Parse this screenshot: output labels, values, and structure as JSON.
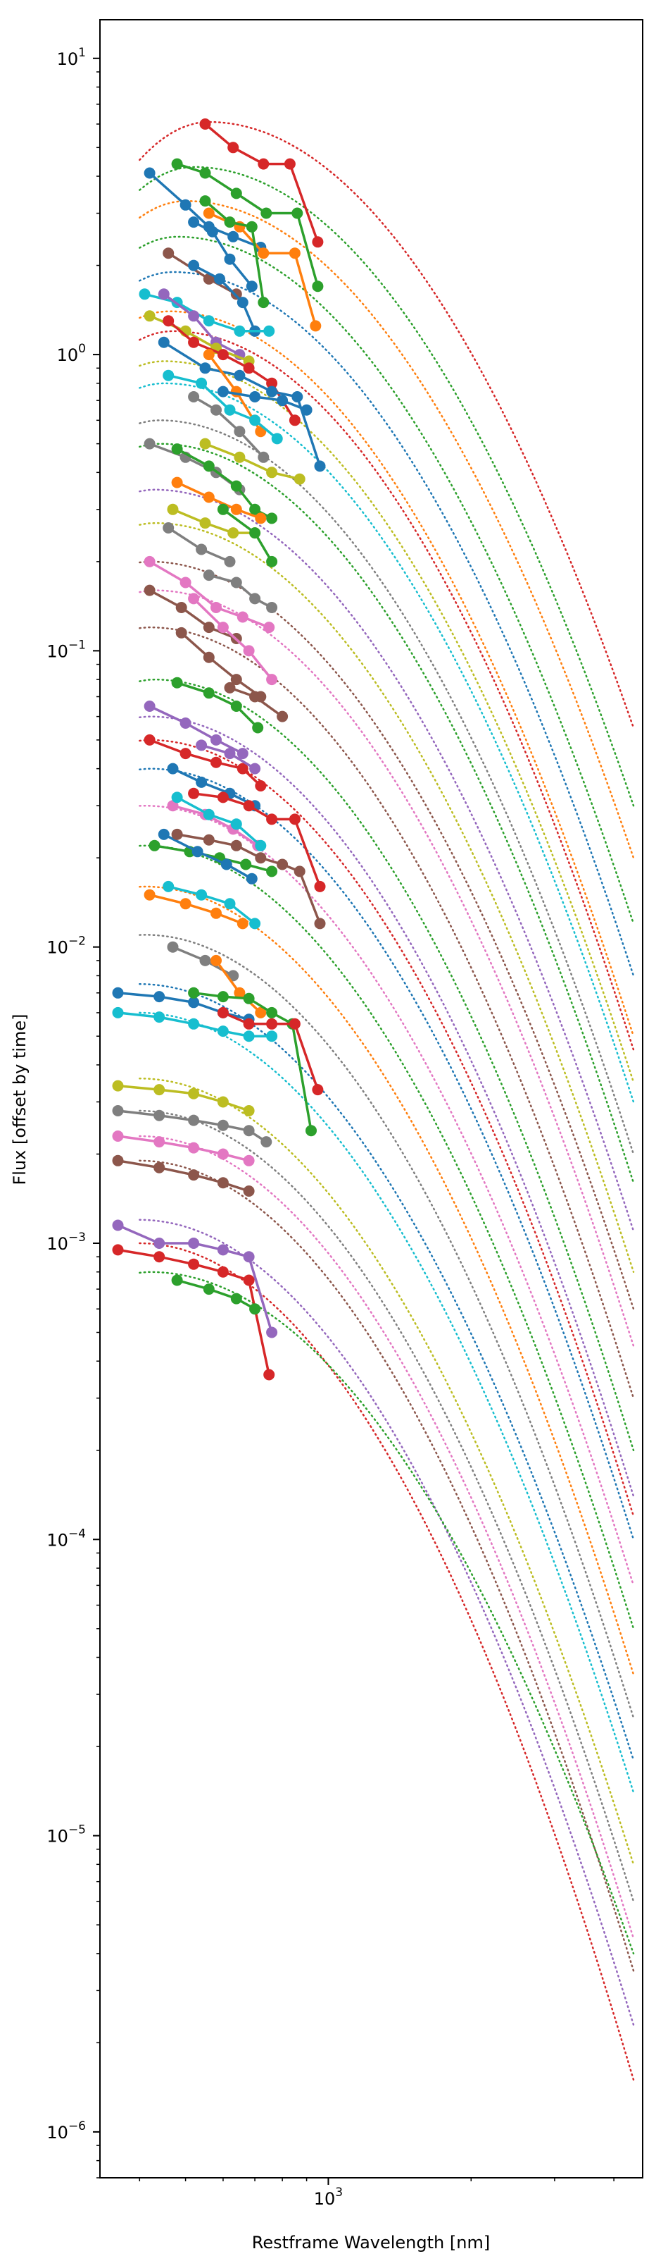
{
  "chart_data": {
    "type": "line",
    "title": "",
    "xlabel": "Restframe Wavelength [nm]",
    "ylabel": "Flux [offset by time]",
    "xscale": "log",
    "yscale": "log",
    "xlim": [
      330,
      4600
    ],
    "ylim": [
      7e-07,
      13.5
    ],
    "grid": false,
    "x_ticks": [
      {
        "value": 1000,
        "label": "10",
        "exp": "3"
      }
    ],
    "y_ticks": [
      {
        "value": 1e-06,
        "label": "10",
        "exp": "−6"
      },
      {
        "value": 1e-05,
        "label": "10",
        "exp": "−5"
      },
      {
        "value": 0.0001,
        "label": "10",
        "exp": "−4"
      },
      {
        "value": 0.001,
        "label": "10",
        "exp": "−3"
      },
      {
        "value": 0.01,
        "label": "10",
        "exp": "−2"
      },
      {
        "value": 0.1,
        "label": "10",
        "exp": "−1"
      },
      {
        "value": 1,
        "label": "10",
        "exp": "0"
      },
      {
        "value": 10,
        "label": "10",
        "exp": "1"
      }
    ],
    "palette": [
      "#1f77b4",
      "#ff7f0e",
      "#2ca02c",
      "#d62728",
      "#9467bd",
      "#8c564b",
      "#e377c2",
      "#7f7f7f",
      "#bcbd22",
      "#17becf"
    ],
    "observed_series": [
      {
        "color": "#d62728",
        "x": [
          550,
          630,
          730,
          830,
          950
        ],
        "y": [
          6.0,
          5.0,
          4.4,
          4.4,
          2.4
        ]
      },
      {
        "color": "#2ca02c",
        "x": [
          480,
          550,
          640,
          740,
          860,
          950
        ],
        "y": [
          4.4,
          4.1,
          3.5,
          3.0,
          3.0,
          1.7
        ]
      },
      {
        "color": "#1f77b4",
        "x": [
          420,
          500,
          560,
          630,
          720
        ],
        "y": [
          4.1,
          3.2,
          2.7,
          2.5,
          2.3
        ]
      },
      {
        "color": "#ff7f0e",
        "x": [
          560,
          650,
          730,
          850,
          940
        ],
        "y": [
          3.0,
          2.7,
          2.2,
          2.2,
          1.25
        ]
      },
      {
        "color": "#2ca02c",
        "x": [
          550,
          620,
          690,
          730
        ],
        "y": [
          3.3,
          2.8,
          2.7,
          1.5
        ]
      },
      {
        "color": "#1f77b4",
        "x": [
          520,
          570,
          620,
          690
        ],
        "y": [
          2.8,
          2.6,
          2.1,
          1.7
        ]
      },
      {
        "color": "#8c564b",
        "x": [
          460,
          560,
          640
        ],
        "y": [
          2.2,
          1.8,
          1.6
        ]
      },
      {
        "color": "#1f77b4",
        "x": [
          520,
          590,
          660,
          700
        ],
        "y": [
          2.0,
          1.8,
          1.5,
          1.2
        ]
      },
      {
        "color": "#17becf",
        "x": [
          410,
          480,
          560,
          650,
          750
        ],
        "y": [
          1.6,
          1.5,
          1.3,
          1.2,
          1.2
        ]
      },
      {
        "color": "#9467bd",
        "x": [
          450,
          520,
          580,
          650
        ],
        "y": [
          1.6,
          1.35,
          1.1,
          1.0
        ]
      },
      {
        "color": "#bcbd22",
        "x": [
          420,
          500,
          580,
          680
        ],
        "y": [
          1.35,
          1.2,
          1.05,
          0.95
        ]
      },
      {
        "color": "#d62728",
        "x": [
          460,
          520,
          600,
          680,
          760,
          850
        ],
        "y": [
          1.3,
          1.1,
          1.0,
          0.9,
          0.8,
          0.6
        ]
      },
      {
        "color": "#1f77b4",
        "x": [
          450,
          550,
          650,
          760,
          860,
          960
        ],
        "y": [
          1.1,
          0.9,
          0.85,
          0.75,
          0.72,
          0.42
        ]
      },
      {
        "color": "#ff7f0e",
        "x": [
          560,
          640,
          720
        ],
        "y": [
          1.0,
          0.75,
          0.55
        ]
      },
      {
        "color": "#17becf",
        "x": [
          460,
          540,
          620,
          700,
          780
        ],
        "y": [
          0.85,
          0.8,
          0.65,
          0.6,
          0.52
        ]
      },
      {
        "color": "#7f7f7f",
        "x": [
          520,
          580,
          650,
          730
        ],
        "y": [
          0.72,
          0.65,
          0.55,
          0.45
        ]
      },
      {
        "color": "#1f77b4",
        "x": [
          600,
          700,
          800,
          900
        ],
        "y": [
          0.75,
          0.72,
          0.7,
          0.65
        ]
      },
      {
        "color": "#bcbd22",
        "x": [
          550,
          650,
          760,
          870
        ],
        "y": [
          0.5,
          0.45,
          0.4,
          0.38
        ]
      },
      {
        "color": "#7f7f7f",
        "x": [
          420,
          500,
          580,
          650
        ],
        "y": [
          0.5,
          0.45,
          0.4,
          0.35
        ]
      },
      {
        "color": "#2ca02c",
        "x": [
          480,
          560,
          640,
          700,
          760
        ],
        "y": [
          0.48,
          0.42,
          0.36,
          0.3,
          0.28
        ]
      },
      {
        "color": "#ff7f0e",
        "x": [
          480,
          560,
          640,
          720
        ],
        "y": [
          0.37,
          0.33,
          0.3,
          0.28
        ]
      },
      {
        "color": "#bcbd22",
        "x": [
          470,
          550,
          630,
          700
        ],
        "y": [
          0.3,
          0.27,
          0.25,
          0.25
        ]
      },
      {
        "color": "#7f7f7f",
        "x": [
          460,
          540,
          620
        ],
        "y": [
          0.26,
          0.22,
          0.2
        ]
      },
      {
        "color": "#2ca02c",
        "x": [
          600,
          700,
          760
        ],
        "y": [
          0.3,
          0.25,
          0.2
        ]
      },
      {
        "color": "#7f7f7f",
        "x": [
          560,
          640,
          700,
          760
        ],
        "y": [
          0.18,
          0.17,
          0.15,
          0.14
        ]
      },
      {
        "color": "#e377c2",
        "x": [
          420,
          500,
          580,
          660,
          750
        ],
        "y": [
          0.2,
          0.17,
          0.14,
          0.13,
          0.12
        ]
      },
      {
        "color": "#8c564b",
        "x": [
          420,
          490,
          560,
          640
        ],
        "y": [
          0.16,
          0.14,
          0.12,
          0.11
        ]
      },
      {
        "color": "#e377c2",
        "x": [
          520,
          600,
          680,
          760
        ],
        "y": [
          0.15,
          0.12,
          0.1,
          0.08
        ]
      },
      {
        "color": "#8c564b",
        "x": [
          490,
          560,
          640,
          720
        ],
        "y": [
          0.115,
          0.095,
          0.08,
          0.07
        ]
      },
      {
        "color": "#2ca02c",
        "x": [
          480,
          560,
          640,
          710
        ],
        "y": [
          0.078,
          0.072,
          0.065,
          0.055
        ]
      },
      {
        "color": "#8c564b",
        "x": [
          620,
          700,
          800
        ],
        "y": [
          0.075,
          0.07,
          0.06
        ]
      },
      {
        "color": "#9467bd",
        "x": [
          420,
          500,
          580,
          660
        ],
        "y": [
          0.065,
          0.057,
          0.05,
          0.045
        ]
      },
      {
        "color": "#d62728",
        "x": [
          420,
          500,
          580,
          660,
          720
        ],
        "y": [
          0.05,
          0.045,
          0.042,
          0.04,
          0.035
        ]
      },
      {
        "color": "#9467bd",
        "x": [
          540,
          620,
          700
        ],
        "y": [
          0.048,
          0.045,
          0.04
        ]
      },
      {
        "color": "#1f77b4",
        "x": [
          470,
          540,
          620,
          700
        ],
        "y": [
          0.04,
          0.036,
          0.033,
          0.03
        ]
      },
      {
        "color": "#d62728",
        "x": [
          520,
          600,
          680,
          760,
          850,
          960
        ],
        "y": [
          0.033,
          0.032,
          0.03,
          0.027,
          0.027,
          0.016
        ]
      },
      {
        "color": "#e377c2",
        "x": [
          470,
          550,
          630,
          710
        ],
        "y": [
          0.03,
          0.028,
          0.025,
          0.022
        ]
      },
      {
        "color": "#17becf",
        "x": [
          480,
          560,
          640,
          720
        ],
        "y": [
          0.032,
          0.028,
          0.026,
          0.022
        ]
      },
      {
        "color": "#2ca02c",
        "x": [
          430,
          510,
          590,
          670,
          760
        ],
        "y": [
          0.022,
          0.021,
          0.02,
          0.019,
          0.018
        ]
      },
      {
        "color": "#1f77b4",
        "x": [
          450,
          530,
          610,
          690
        ],
        "y": [
          0.024,
          0.021,
          0.019,
          0.017
        ]
      },
      {
        "color": "#8c564b",
        "x": [
          480,
          560,
          640,
          720,
          800,
          870,
          960
        ],
        "y": [
          0.024,
          0.023,
          0.022,
          0.02,
          0.019,
          0.018,
          0.012
        ]
      },
      {
        "color": "#ff7f0e",
        "x": [
          420,
          500,
          580,
          660
        ],
        "y": [
          0.015,
          0.014,
          0.013,
          0.012
        ]
      },
      {
        "color": "#17becf",
        "x": [
          460,
          540,
          620,
          700
        ],
        "y": [
          0.016,
          0.015,
          0.014,
          0.012
        ]
      },
      {
        "color": "#7f7f7f",
        "x": [
          470,
          550,
          630
        ],
        "y": [
          0.01,
          0.009,
          0.008
        ]
      },
      {
        "color": "#ff7f0e",
        "x": [
          580,
          650,
          720
        ],
        "y": [
          0.009,
          0.007,
          0.006
        ]
      },
      {
        "color": "#1f77b4",
        "x": [
          360,
          440,
          520,
          600,
          680
        ],
        "y": [
          0.007,
          0.0068,
          0.0065,
          0.006,
          0.0057
        ]
      },
      {
        "color": "#2ca02c",
        "x": [
          520,
          600,
          680,
          760,
          840,
          920
        ],
        "y": [
          0.007,
          0.0068,
          0.0067,
          0.006,
          0.0055,
          0.0024
        ]
      },
      {
        "color": "#17becf",
        "x": [
          360,
          440,
          520,
          600,
          680,
          760
        ],
        "y": [
          0.006,
          0.0058,
          0.0055,
          0.0052,
          0.005,
          0.005
        ]
      },
      {
        "color": "#d62728",
        "x": [
          600,
          680,
          760,
          850,
          950
        ],
        "y": [
          0.006,
          0.0055,
          0.0055,
          0.0055,
          0.0033
        ]
      },
      {
        "color": "#bcbd22",
        "x": [
          360,
          440,
          520,
          600,
          680
        ],
        "y": [
          0.0034,
          0.0033,
          0.0032,
          0.003,
          0.0028
        ]
      },
      {
        "color": "#7f7f7f",
        "x": [
          360,
          440,
          520,
          600,
          680,
          740
        ],
        "y": [
          0.0028,
          0.0027,
          0.0026,
          0.0025,
          0.0024,
          0.0022
        ]
      },
      {
        "color": "#e377c2",
        "x": [
          360,
          440,
          520,
          600,
          680
        ],
        "y": [
          0.0023,
          0.0022,
          0.0021,
          0.002,
          0.0019
        ]
      },
      {
        "color": "#8c564b",
        "x": [
          360,
          440,
          520,
          600,
          680
        ],
        "y": [
          0.0019,
          0.0018,
          0.0017,
          0.0016,
          0.0015
        ]
      },
      {
        "color": "#9467bd",
        "x": [
          360,
          440,
          520,
          600,
          680,
          760
        ],
        "y": [
          0.00115,
          0.001,
          0.001,
          0.00095,
          0.0009,
          0.0005
        ]
      },
      {
        "color": "#d62728",
        "x": [
          360,
          440,
          520,
          600,
          680,
          750
        ],
        "y": [
          0.00095,
          0.0009,
          0.00085,
          0.0008,
          0.00075,
          0.00036
        ]
      },
      {
        "color": "#2ca02c",
        "x": [
          480,
          560,
          640,
          700
        ],
        "y": [
          0.00075,
          0.0007,
          0.00065,
          0.0006
        ]
      }
    ],
    "model_curve_note_excluded": true,
    "model_curves": [
      {
        "color": "#d62728",
        "peak_x": 560,
        "peak_y": 6.1,
        "end_y": 0.055
      },
      {
        "color": "#2ca02c",
        "peak_x": 520,
        "peak_y": 4.3,
        "end_y": 0.03
      },
      {
        "color": "#ff7f0e",
        "peak_x": 500,
        "peak_y": 3.3,
        "end_y": 0.02
      },
      {
        "color": "#2ca02c",
        "peak_x": 480,
        "peak_y": 2.5,
        "end_y": 0.012
      },
      {
        "color": "#1f77b4",
        "peak_x": 470,
        "peak_y": 1.9,
        "end_y": 0.008
      },
      {
        "color": "#ff7f0e",
        "peak_x": 460,
        "peak_y": 1.4,
        "end_y": 0.005
      },
      {
        "color": "#d62728",
        "peak_x": 470,
        "peak_y": 1.2,
        "end_y": 0.0045
      },
      {
        "color": "#bcbd22",
        "peak_x": 450,
        "peak_y": 0.95,
        "end_y": 0.0035
      },
      {
        "color": "#17becf",
        "peak_x": 450,
        "peak_y": 0.8,
        "end_y": 0.003
      },
      {
        "color": "#7f7f7f",
        "peak_x": 440,
        "peak_y": 0.6,
        "end_y": 0.002
      },
      {
        "color": "#2ca02c",
        "peak_x": 440,
        "peak_y": 0.5,
        "end_y": 0.0016
      },
      {
        "color": "#9467bd",
        "peak_x": 430,
        "peak_y": 0.35,
        "end_y": 0.0011
      },
      {
        "color": "#bcbd22",
        "peak_x": 430,
        "peak_y": 0.27,
        "end_y": 0.0008
      },
      {
        "color": "#8c564b",
        "peak_x": 420,
        "peak_y": 0.2,
        "end_y": 0.0006
      },
      {
        "color": "#e377c2",
        "peak_x": 430,
        "peak_y": 0.16,
        "end_y": 0.00045
      },
      {
        "color": "#8c564b",
        "peak_x": 420,
        "peak_y": 0.12,
        "end_y": 0.0003
      },
      {
        "color": "#2ca02c",
        "peak_x": 430,
        "peak_y": 0.08,
        "end_y": 0.0002
      },
      {
        "color": "#9467bd",
        "peak_x": 420,
        "peak_y": 0.06,
        "end_y": 0.00014
      },
      {
        "color": "#d62728",
        "peak_x": 420,
        "peak_y": 0.05,
        "end_y": 0.00012
      },
      {
        "color": "#1f77b4",
        "peak_x": 420,
        "peak_y": 0.04,
        "end_y": 0.0001
      },
      {
        "color": "#e377c2",
        "peak_x": 410,
        "peak_y": 0.03,
        "end_y": 7e-05
      },
      {
        "color": "#2ca02c",
        "peak_x": 410,
        "peak_y": 0.022,
        "end_y": 5e-05
      },
      {
        "color": "#ff7f0e",
        "peak_x": 410,
        "peak_y": 0.016,
        "end_y": 3.5e-05
      },
      {
        "color": "#7f7f7f",
        "peak_x": 410,
        "peak_y": 0.011,
        "end_y": 2.5e-05
      },
      {
        "color": "#1f77b4",
        "peak_x": 400,
        "peak_y": 0.0075,
        "end_y": 1.8e-05
      },
      {
        "color": "#17becf",
        "peak_x": 400,
        "peak_y": 0.006,
        "end_y": 1.4e-05
      },
      {
        "color": "#bcbd22",
        "peak_x": 400,
        "peak_y": 0.0036,
        "end_y": 8e-06
      },
      {
        "color": "#7f7f7f",
        "peak_x": 400,
        "peak_y": 0.0028,
        "end_y": 6e-06
      },
      {
        "color": "#e377c2",
        "peak_x": 400,
        "peak_y": 0.0023,
        "end_y": 4.5e-06
      },
      {
        "color": "#8c564b",
        "peak_x": 400,
        "peak_y": 0.0019,
        "end_y": 3.5e-06
      },
      {
        "color": "#9467bd",
        "peak_x": 400,
        "peak_y": 0.0012,
        "end_y": 2.3e-06
      },
      {
        "color": "#d62728",
        "peak_x": 400,
        "peak_y": 0.001,
        "end_y": 1.5e-06
      },
      {
        "color": "#2ca02c",
        "peak_x": 420,
        "peak_y": 0.0008,
        "end_y": 4e-06
      }
    ]
  }
}
